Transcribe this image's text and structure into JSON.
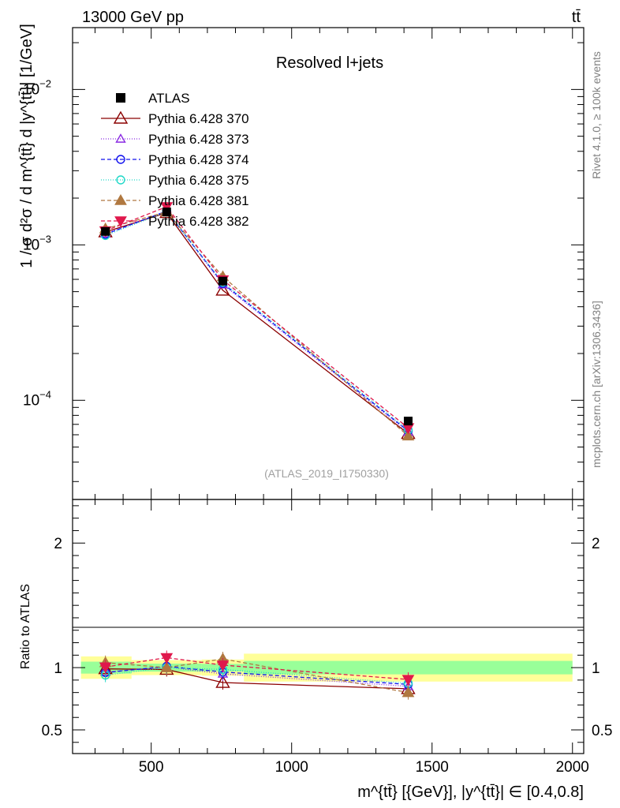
{
  "header": {
    "left": "13000 GeV pp",
    "right": "tt̄"
  },
  "side_labels": {
    "rivet": "Rivet 4.1.0, ≥ 100k events",
    "mcplots": "mcplots.cern.ch [arXiv:1306.3436]"
  },
  "chart_data": {
    "type": "scatter",
    "title": "Resolved l+jets",
    "analysis_id": "(ATLAS_2019_I1750330)",
    "xlabel": "m^{tt̄} [{GeV}], |y^{tt̄}| ∈ [0.4,0.8]",
    "ylabel": "1 / σ d²σ / d m^{tt̄} d |y^{tt̄}| [1/GeV]",
    "ratio_ylabel": "Ratio to ATLAS",
    "xlim": [
      220,
      2040
    ],
    "ylim": [
      2.3e-05,
      0.025
    ],
    "yscale": "log",
    "ratio_ylim": [
      0.31,
      2.35
    ],
    "x_ticks": [
      500,
      1000,
      1500,
      2000
    ],
    "x_tick_labels": [
      "500",
      "1000",
      "1500",
      "2000"
    ],
    "y_tick_labels": [
      {
        "value": 0.01,
        "base": "10",
        "exp": "−2"
      },
      {
        "value": 0.001,
        "base": "10",
        "exp": "−3"
      },
      {
        "value": 0.0001,
        "base": "10",
        "exp": "−4"
      }
    ],
    "ratio_ticks": [
      0.5,
      1,
      2
    ],
    "ratio_tick_labels": [
      "0.5",
      "1",
      "2"
    ],
    "data": {
      "name": "ATLAS",
      "bins": [
        [
          250,
          430
        ],
        [
          430,
          680
        ],
        [
          680,
          830
        ],
        [
          830,
          2000
        ]
      ],
      "x": [
        337,
        555,
        755,
        1415
      ],
      "y": [
        0.00122,
        0.00163,
        0.000585,
        7.35e-05
      ],
      "ratio_band_stat": [
        0.048,
        0.032,
        0.03,
        0.054
      ],
      "ratio_band_total": [
        0.09,
        0.06,
        0.065,
        0.112
      ]
    },
    "series": [
      {
        "name": "Pythia 6.428 370",
        "color": "#8b0000",
        "marker": "triangle-open",
        "dash": "solid",
        "y": [
          0.00121,
          0.00161,
          0.00051,
          6.1e-05
        ],
        "ratio": [
          0.99,
          0.985,
          0.88,
          0.83
        ]
      },
      {
        "name": "Pythia 6.428 373",
        "color": "#8a2be2",
        "marker": "triangle-open-small",
        "dash": "1,2",
        "y": [
          0.00118,
          0.00164,
          0.000555,
          6.25e-05
        ],
        "ratio": [
          0.965,
          1.005,
          0.95,
          0.85
        ]
      },
      {
        "name": "Pythia 6.428 374",
        "color": "#1010ee",
        "marker": "circle-open",
        "dash": "5,3",
        "y": [
          0.00117,
          0.00165,
          0.000565,
          6.35e-05
        ],
        "ratio": [
          0.96,
          1.01,
          0.965,
          0.865
        ]
      },
      {
        "name": "Pythia 6.428 375",
        "color": "#20d8c8",
        "marker": "circle-open",
        "dash": "1,2",
        "y": [
          0.00115,
          0.00163,
          0.000575,
          6.45e-05
        ],
        "ratio": [
          0.94,
          1.0,
          0.985,
          0.875
        ]
      },
      {
        "name": "Pythia 6.428 381",
        "color": "#b07840",
        "marker": "triangle-filled",
        "dash": "5,3",
        "y": [
          0.00127,
          0.00163,
          0.000625,
          5.9e-05
        ],
        "ratio": [
          1.04,
          1.0,
          1.07,
          0.8
        ]
      },
      {
        "name": "Pythia 6.428 382",
        "color": "#e0184c",
        "marker": "triangle-down-filled",
        "dash": "5,3",
        "y": [
          0.00123,
          0.00176,
          0.000595,
          6.65e-05
        ],
        "ratio": [
          1.005,
          1.08,
          1.02,
          0.905
        ]
      }
    ]
  }
}
